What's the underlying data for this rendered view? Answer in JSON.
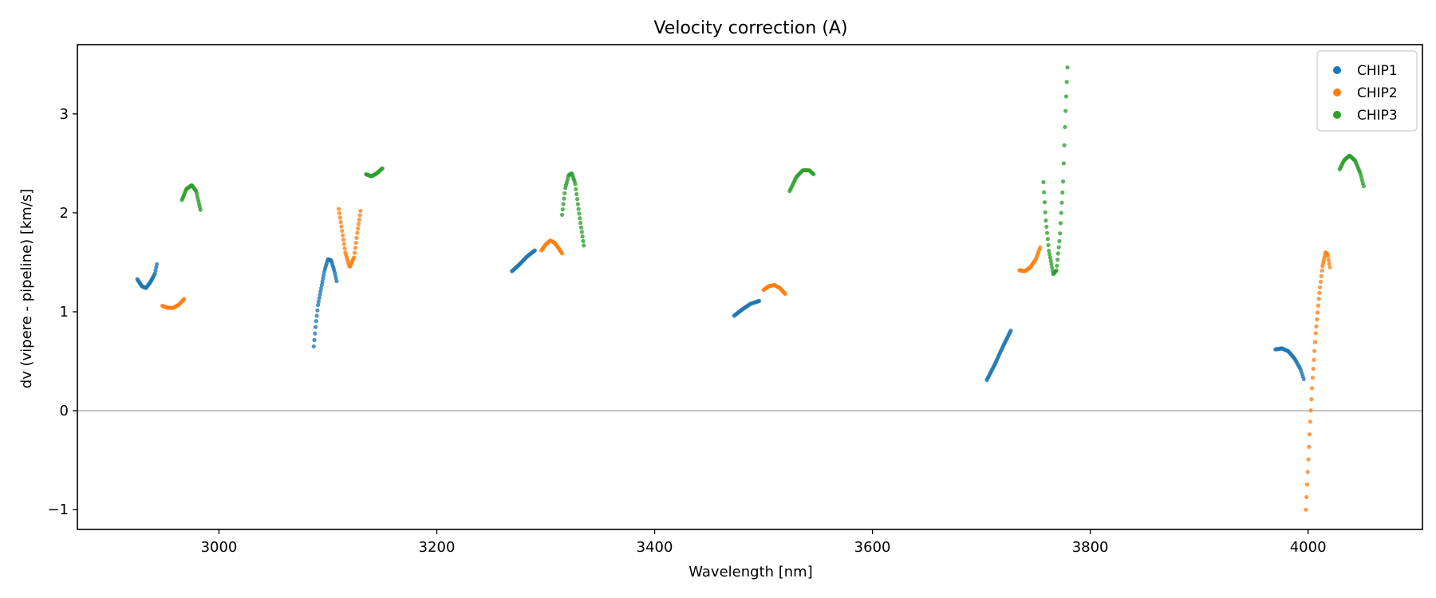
{
  "chart_data": {
    "type": "scatter",
    "title": "Velocity correction (A)",
    "xlabel": "Wavelength [nm]",
    "ylabel": "dv (vipere - pipeline) [km/s]",
    "xlim": [
      2870,
      4105
    ],
    "ylim": [
      -1.2,
      3.7
    ],
    "xticks": [
      3000,
      3200,
      3400,
      3600,
      3800,
      4000
    ],
    "yticks": [
      -1,
      0,
      1,
      2,
      3
    ],
    "ytick_labels": [
      "−1",
      "0",
      "1",
      "2",
      "3"
    ],
    "hline": 0,
    "legend_position": "top-right",
    "series": [
      {
        "name": "CHIP1",
        "color": "#1f77b4",
        "segments": [
          {
            "points": [
              [
                2925,
                1.33
              ],
              [
                2929,
                1.26
              ],
              [
                2933,
                1.24
              ],
              [
                2937,
                1.3
              ],
              [
                2941,
                1.38
              ],
              [
                2943,
                1.48
              ]
            ],
            "n": 30
          },
          {
            "points": [
              [
                3087,
                0.65
              ],
              [
                3089,
                0.88
              ],
              [
                3091,
                1.07
              ],
              [
                3094,
                1.25
              ],
              [
                3097,
                1.42
              ],
              [
                3100,
                1.53
              ],
              [
                3103,
                1.52
              ],
              [
                3106,
                1.41
              ],
              [
                3108,
                1.31
              ]
            ],
            "n": 38
          },
          {
            "points": [
              [
                3269,
                1.41
              ],
              [
                3276,
                1.48
              ],
              [
                3283,
                1.56
              ],
              [
                3290,
                1.62
              ]
            ],
            "n": 30
          },
          {
            "points": [
              [
                3473,
                0.96
              ],
              [
                3480,
                1.02
              ],
              [
                3488,
                1.08
              ],
              [
                3496,
                1.11
              ]
            ],
            "n": 30
          },
          {
            "points": [
              [
                3705,
                0.31
              ],
              [
                3712,
                0.46
              ],
              [
                3719,
                0.63
              ],
              [
                3727,
                0.81
              ]
            ],
            "n": 34
          },
          {
            "points": [
              [
                3970,
                0.62
              ],
              [
                3976,
                0.63
              ],
              [
                3982,
                0.6
              ],
              [
                3988,
                0.52
              ],
              [
                3993,
                0.42
              ],
              [
                3996,
                0.32
              ]
            ],
            "n": 34
          }
        ]
      },
      {
        "name": "CHIP2",
        "color": "#ff7f0e",
        "segments": [
          {
            "points": [
              [
                2948,
                1.06
              ],
              [
                2953,
                1.04
              ],
              [
                2958,
                1.04
              ],
              [
                2963,
                1.07
              ],
              [
                2968,
                1.13
              ]
            ],
            "n": 30
          },
          {
            "points": [
              [
                3110,
                2.04
              ],
              [
                3113,
                1.82
              ],
              [
                3116,
                1.6
              ],
              [
                3120,
                1.45
              ],
              [
                3124,
                1.55
              ],
              [
                3127,
                1.8
              ],
              [
                3130,
                2.02
              ]
            ],
            "n": 34
          },
          {
            "points": [
              [
                3296,
                1.62
              ],
              [
                3300,
                1.68
              ],
              [
                3304,
                1.72
              ],
              [
                3308,
                1.7
              ],
              [
                3312,
                1.64
              ],
              [
                3315,
                1.59
              ]
            ],
            "n": 30
          },
          {
            "points": [
              [
                3500,
                1.22
              ],
              [
                3505,
                1.26
              ],
              [
                3510,
                1.27
              ],
              [
                3515,
                1.24
              ],
              [
                3520,
                1.18
              ]
            ],
            "n": 30
          },
          {
            "points": [
              [
                3735,
                1.42
              ],
              [
                3740,
                1.41
              ],
              [
                3745,
                1.45
              ],
              [
                3750,
                1.53
              ],
              [
                3754,
                1.65
              ]
            ],
            "n": 30
          },
          {
            "points": [
              [
                3998,
                -1.0
              ],
              [
                4000,
                -0.55
              ],
              [
                4002,
                -0.1
              ],
              [
                4004,
                0.3
              ],
              [
                4007,
                0.78
              ],
              [
                4010,
                1.15
              ],
              [
                4013,
                1.45
              ],
              [
                4016,
                1.6
              ],
              [
                4018,
                1.58
              ],
              [
                4020,
                1.45
              ]
            ],
            "n": 40
          }
        ]
      },
      {
        "name": "CHIP3",
        "color": "#2ca02c",
        "segments": [
          {
            "points": [
              [
                2966,
                2.13
              ],
              [
                2970,
                2.24
              ],
              [
                2975,
                2.28
              ],
              [
                2979,
                2.22
              ],
              [
                2983,
                2.03
              ]
            ],
            "n": 30
          },
          {
            "points": [
              [
                3135,
                2.39
              ],
              [
                3140,
                2.37
              ],
              [
                3145,
                2.4
              ],
              [
                3150,
                2.45
              ]
            ],
            "n": 26
          },
          {
            "points": [
              [
                3315,
                1.98
              ],
              [
                3318,
                2.25
              ],
              [
                3321,
                2.38
              ],
              [
                3324,
                2.4
              ],
              [
                3327,
                2.3
              ],
              [
                3330,
                2.05
              ],
              [
                3333,
                1.82
              ],
              [
                3335,
                1.67
              ]
            ],
            "n": 34
          },
          {
            "points": [
              [
                3524,
                2.22
              ],
              [
                3530,
                2.36
              ],
              [
                3536,
                2.43
              ],
              [
                3542,
                2.43
              ],
              [
                3546,
                2.39
              ]
            ],
            "n": 30
          },
          {
            "points": [
              [
                3757,
                2.31
              ],
              [
                3759,
                1.95
              ],
              [
                3762,
                1.62
              ],
              [
                3766,
                1.38
              ],
              [
                3769,
                1.42
              ],
              [
                3772,
                1.75
              ],
              [
                3775,
                2.3
              ],
              [
                3777,
                2.95
              ],
              [
                3779,
                3.47
              ]
            ],
            "n": 40
          },
          {
            "points": [
              [
                4029,
                2.44
              ],
              [
                4033,
                2.53
              ],
              [
                4038,
                2.58
              ],
              [
                4043,
                2.53
              ],
              [
                4048,
                2.4
              ],
              [
                4051,
                2.27
              ]
            ],
            "n": 34
          }
        ]
      }
    ]
  }
}
